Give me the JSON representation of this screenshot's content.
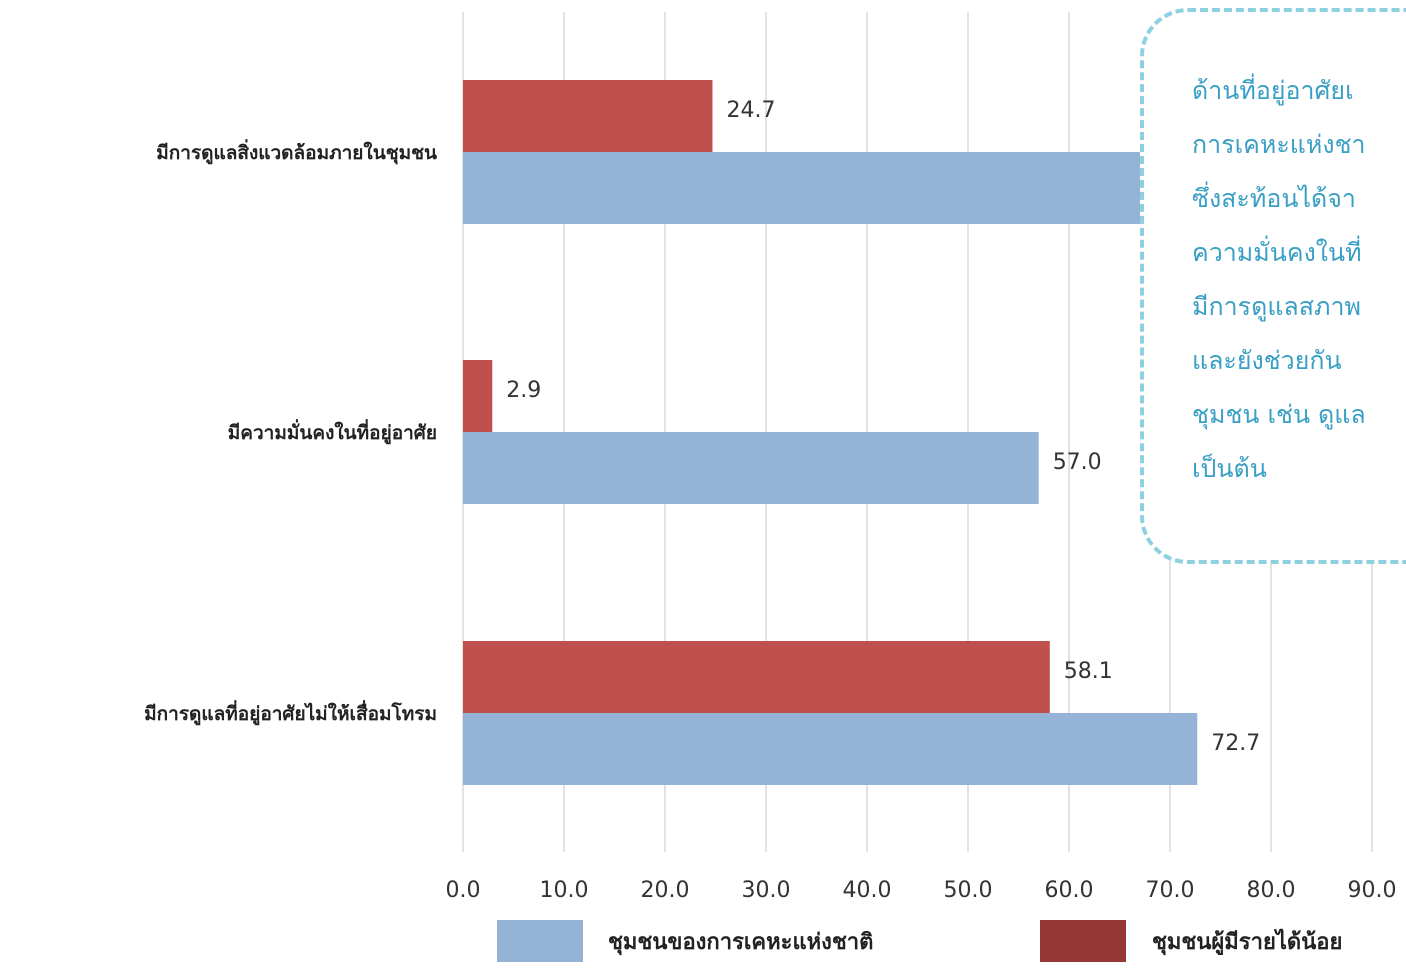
{
  "chart_data": {
    "type": "bar",
    "orientation": "horizontal",
    "categories": [
      "มีการดูแลสิ่งแวดล้อมภายในชุมชน",
      "มีความมั่นคงในที่อยู่อาศัย",
      "มีการดูแลที่อยู่อาศัยไม่ให้เสื่อมโทรม"
    ],
    "series": [
      {
        "name": "ชุมชนของการเคหะแห่งชาติ",
        "color": "#95b3d7",
        "values": [
          67.4,
          57.0,
          72.7
        ],
        "labels": [
          "",
          "57.0",
          "72.7"
        ]
      },
      {
        "name": "ชุมชนผู้มีรายได้น้อย",
        "color": "#c0504d",
        "values": [
          24.7,
          2.9,
          58.1
        ],
        "labels": [
          "24.7",
          "2.9",
          "58.1"
        ]
      }
    ],
    "xlim": [
      0,
      90
    ],
    "xticks": [
      "0.0",
      "10.0",
      "20.0",
      "30.0",
      "40.0",
      "50.0",
      "60.0",
      "70.0",
      "80.0",
      "90.0"
    ],
    "grid": true,
    "legend_position": "bottom",
    "legend_swatch_colors": [
      "#95b3d7",
      "#953735"
    ]
  },
  "callout": {
    "lines": [
      "ด้านที่อยู่อาศัยเ",
      "การเคหะแห่งชา",
      "ซึ่งสะท้อนได้จา",
      "ความมั่นคงในที่",
      "มีการดูแลสภาพ",
      "และยังช่วยกัน",
      "ชุมชน เช่น ดูแล",
      "เป็นต้น"
    ]
  }
}
